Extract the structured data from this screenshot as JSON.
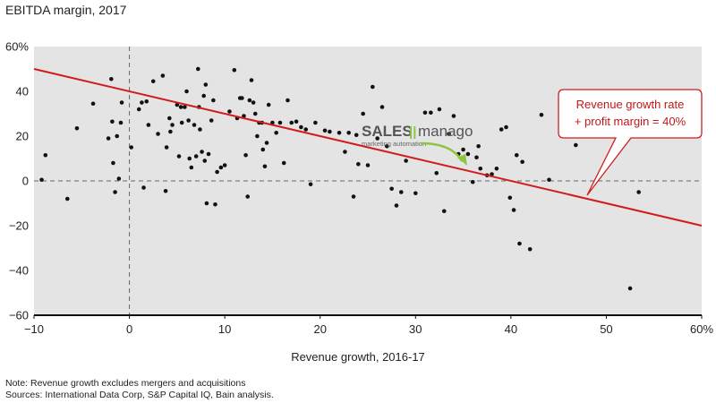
{
  "chart_data": {
    "type": "scatter",
    "title": "EBITDA margin, 2017",
    "xlabel": "Revenue growth, 2016-17",
    "xlim": [
      -10,
      60
    ],
    "ylim": [
      -60,
      60
    ],
    "x_ticks": [
      {
        "value": -10,
        "label": "−10"
      },
      {
        "value": 0,
        "label": "0"
      },
      {
        "value": 10,
        "label": "10"
      },
      {
        "value": 20,
        "label": "20"
      },
      {
        "value": 30,
        "label": "30"
      },
      {
        "value": 40,
        "label": "40"
      },
      {
        "value": 50,
        "label": "50"
      },
      {
        "value": 60,
        "label": "60%"
      }
    ],
    "y_ticks": [
      {
        "value": 60,
        "label": "60%"
      },
      {
        "value": 40,
        "label": "40"
      },
      {
        "value": 20,
        "label": "20"
      },
      {
        "value": 0,
        "label": "0"
      },
      {
        "value": -20,
        "label": "−20"
      },
      {
        "value": -40,
        "label": "−40"
      },
      {
        "value": -60,
        "label": "−60"
      }
    ],
    "grid": false,
    "background": "#e4e4e4",
    "point_color": "#111111",
    "line_color": "#d01c1e",
    "reference_line": {
      "description": "Revenue growth rate + profit margin = 40%",
      "from": [
        -10,
        50
      ],
      "to": [
        60,
        -20
      ]
    },
    "annotation": {
      "lines": [
        "Revenue growth rate",
        "+ profit margin = 40%"
      ]
    },
    "points": [
      [
        -9.2,
        0.5
      ],
      [
        -8.8,
        11.5
      ],
      [
        -6.5,
        -8
      ],
      [
        -5.5,
        23.5
      ],
      [
        -3.8,
        34.5
      ],
      [
        -2.2,
        19
      ],
      [
        -1.9,
        45.5
      ],
      [
        -1.8,
        26.5
      ],
      [
        -1.7,
        8
      ],
      [
        -1.5,
        -5
      ],
      [
        -1.3,
        20
      ],
      [
        -1.1,
        1
      ],
      [
        -0.9,
        26
      ],
      [
        -0.8,
        35
      ],
      [
        0.2,
        15
      ],
      [
        1.0,
        32
      ],
      [
        1.3,
        35
      ],
      [
        1.5,
        -3
      ],
      [
        1.8,
        35.5
      ],
      [
        2.0,
        25
      ],
      [
        2.5,
        44.5
      ],
      [
        3.0,
        21
      ],
      [
        3.5,
        47
      ],
      [
        3.8,
        -4.5
      ],
      [
        3.9,
        15
      ],
      [
        4.2,
        28
      ],
      [
        4.3,
        22
      ],
      [
        4.5,
        25
      ],
      [
        5.0,
        34
      ],
      [
        5.2,
        11
      ],
      [
        5.4,
        33
      ],
      [
        5.5,
        26
      ],
      [
        5.8,
        33
      ],
      [
        6.0,
        40
      ],
      [
        6.2,
        27
      ],
      [
        6.3,
        10
      ],
      [
        6.5,
        6
      ],
      [
        6.8,
        25
      ],
      [
        7.0,
        11
      ],
      [
        7.2,
        50
      ],
      [
        7.3,
        33
      ],
      [
        7.4,
        23
      ],
      [
        7.6,
        13
      ],
      [
        7.8,
        38
      ],
      [
        7.9,
        9
      ],
      [
        8.0,
        43
      ],
      [
        8.1,
        -10
      ],
      [
        8.3,
        12
      ],
      [
        8.6,
        27
      ],
      [
        8.8,
        36
      ],
      [
        9.0,
        -10.5
      ],
      [
        9.2,
        4
      ],
      [
        9.6,
        6
      ],
      [
        10.0,
        7
      ],
      [
        10.5,
        31
      ],
      [
        11.0,
        49.5
      ],
      [
        11.3,
        28
      ],
      [
        11.6,
        37
      ],
      [
        11.8,
        37
      ],
      [
        12.0,
        29
      ],
      [
        12.2,
        11.5
      ],
      [
        12.4,
        -7
      ],
      [
        12.6,
        36
      ],
      [
        12.8,
        45
      ],
      [
        13.0,
        35
      ],
      [
        13.2,
        30
      ],
      [
        13.4,
        20
      ],
      [
        13.6,
        26
      ],
      [
        13.9,
        26
      ],
      [
        14.0,
        14
      ],
      [
        14.2,
        6.5
      ],
      [
        14.4,
        17
      ],
      [
        14.6,
        34
      ],
      [
        15.0,
        26
      ],
      [
        15.4,
        21.5
      ],
      [
        15.8,
        26
      ],
      [
        16.2,
        8
      ],
      [
        16.6,
        36
      ],
      [
        17.0,
        26
      ],
      [
        17.5,
        26.5
      ],
      [
        18.0,
        24
      ],
      [
        18.5,
        23
      ],
      [
        19.0,
        -1.5
      ],
      [
        19.5,
        26
      ],
      [
        20.5,
        22.5
      ],
      [
        21.0,
        22
      ],
      [
        22.0,
        21.5
      ],
      [
        22.6,
        13
      ],
      [
        23.0,
        21.5
      ],
      [
        23.5,
        -7
      ],
      [
        23.8,
        20.5
      ],
      [
        24.0,
        7.5
      ],
      [
        24.5,
        30
      ],
      [
        25.0,
        7
      ],
      [
        25.5,
        42
      ],
      [
        26.0,
        19
      ],
      [
        26.5,
        33
      ],
      [
        27.0,
        15.5
      ],
      [
        27.5,
        -3.5
      ],
      [
        28.0,
        -11
      ],
      [
        28.5,
        -5
      ],
      [
        29.0,
        9
      ],
      [
        30.0,
        -5.5
      ],
      [
        31.0,
        30.5
      ],
      [
        31.6,
        30.5
      ],
      [
        32.2,
        3.5
      ],
      [
        32.5,
        32
      ],
      [
        33.0,
        -13.5
      ],
      [
        33.5,
        21
      ],
      [
        34.0,
        29
      ],
      [
        34.5,
        12
      ],
      [
        35.0,
        14
      ],
      [
        35.5,
        12
      ],
      [
        36.0,
        -0.5
      ],
      [
        36.4,
        10.5
      ],
      [
        36.6,
        15.5
      ],
      [
        36.8,
        5.5
      ],
      [
        37.5,
        2.5
      ],
      [
        38.0,
        3
      ],
      [
        38.5,
        5.5
      ],
      [
        39.0,
        23
      ],
      [
        39.5,
        24
      ],
      [
        39.9,
        -7.5
      ],
      [
        40.3,
        -13
      ],
      [
        40.6,
        11.5
      ],
      [
        40.9,
        -28
      ],
      [
        41.2,
        8.5
      ],
      [
        42.0,
        -30.5
      ],
      [
        43.2,
        29.5
      ],
      [
        44.0,
        0.5
      ],
      [
        46.8,
        16
      ],
      [
        52.5,
        -48
      ],
      [
        53.4,
        -5
      ]
    ]
  },
  "watermark": {
    "brand": "SALES",
    "brand_bars": "||",
    "brand_suffix": "manago",
    "tagline": "marketing automation"
  },
  "notes": [
    "Note: Revenue growth excludes mergers and acquisitions",
    "Sources: International Data Corp, S&P Capital IQ, Bain analysis."
  ]
}
